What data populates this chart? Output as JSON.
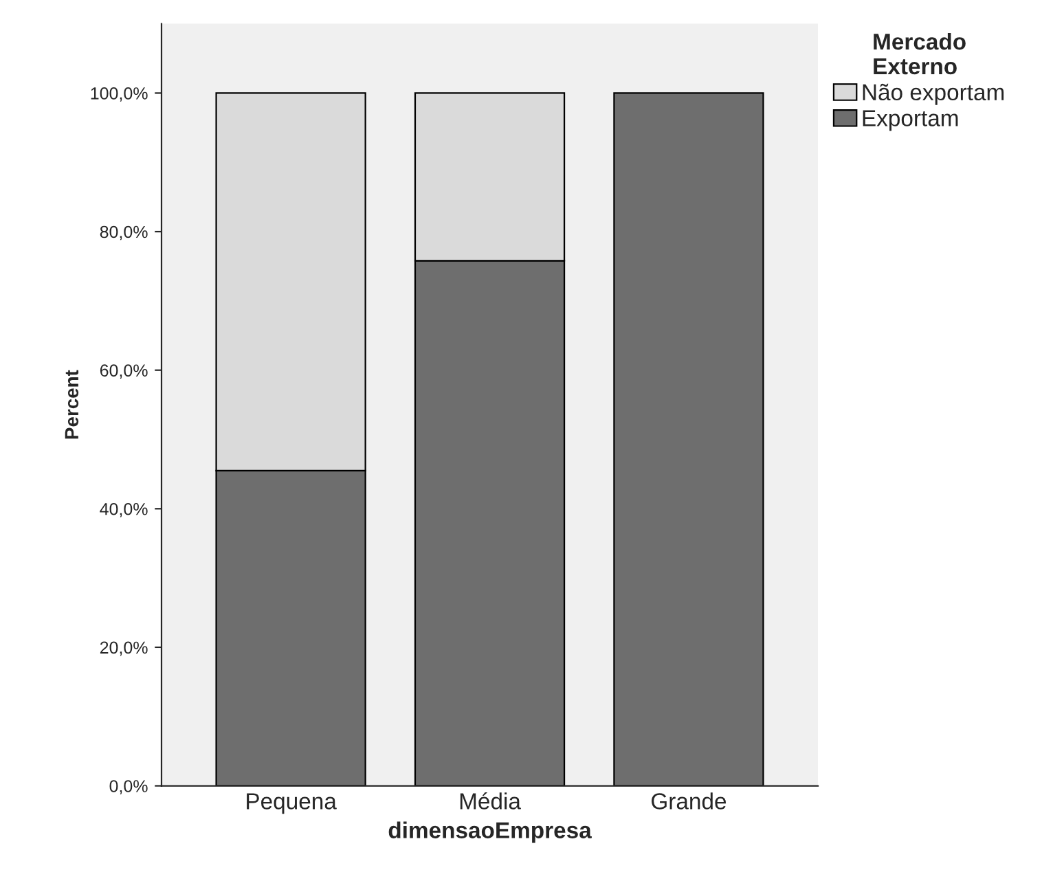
{
  "chart_data": {
    "type": "bar",
    "stacked": true,
    "xlabel": "dimensaoEmpresa",
    "ylabel": "Percent",
    "legend_title": "Mercado\nExterno",
    "legend": "top right",
    "categories": [
      "Pequena",
      "Média",
      "Grande"
    ],
    "series": [
      {
        "name": "Exportam",
        "color": "#6e6e6e",
        "values": [
          45.5,
          75.8,
          100
        ]
      },
      {
        "name": "Não exportam",
        "color": "#dadada",
        "values": [
          54.5,
          24.2,
          null
        ]
      }
    ],
    "ylim": [
      0,
      110
    ],
    "yticks": [
      {
        "value": 0,
        "label": "0,0%"
      },
      {
        "value": 20,
        "label": "20,0%"
      },
      {
        "value": 40,
        "label": "40,0%"
      },
      {
        "value": 60,
        "label": "60,0%"
      },
      {
        "value": 80,
        "label": "80,0%"
      },
      {
        "value": 100,
        "label": "100,0%"
      }
    ],
    "grid": false
  }
}
